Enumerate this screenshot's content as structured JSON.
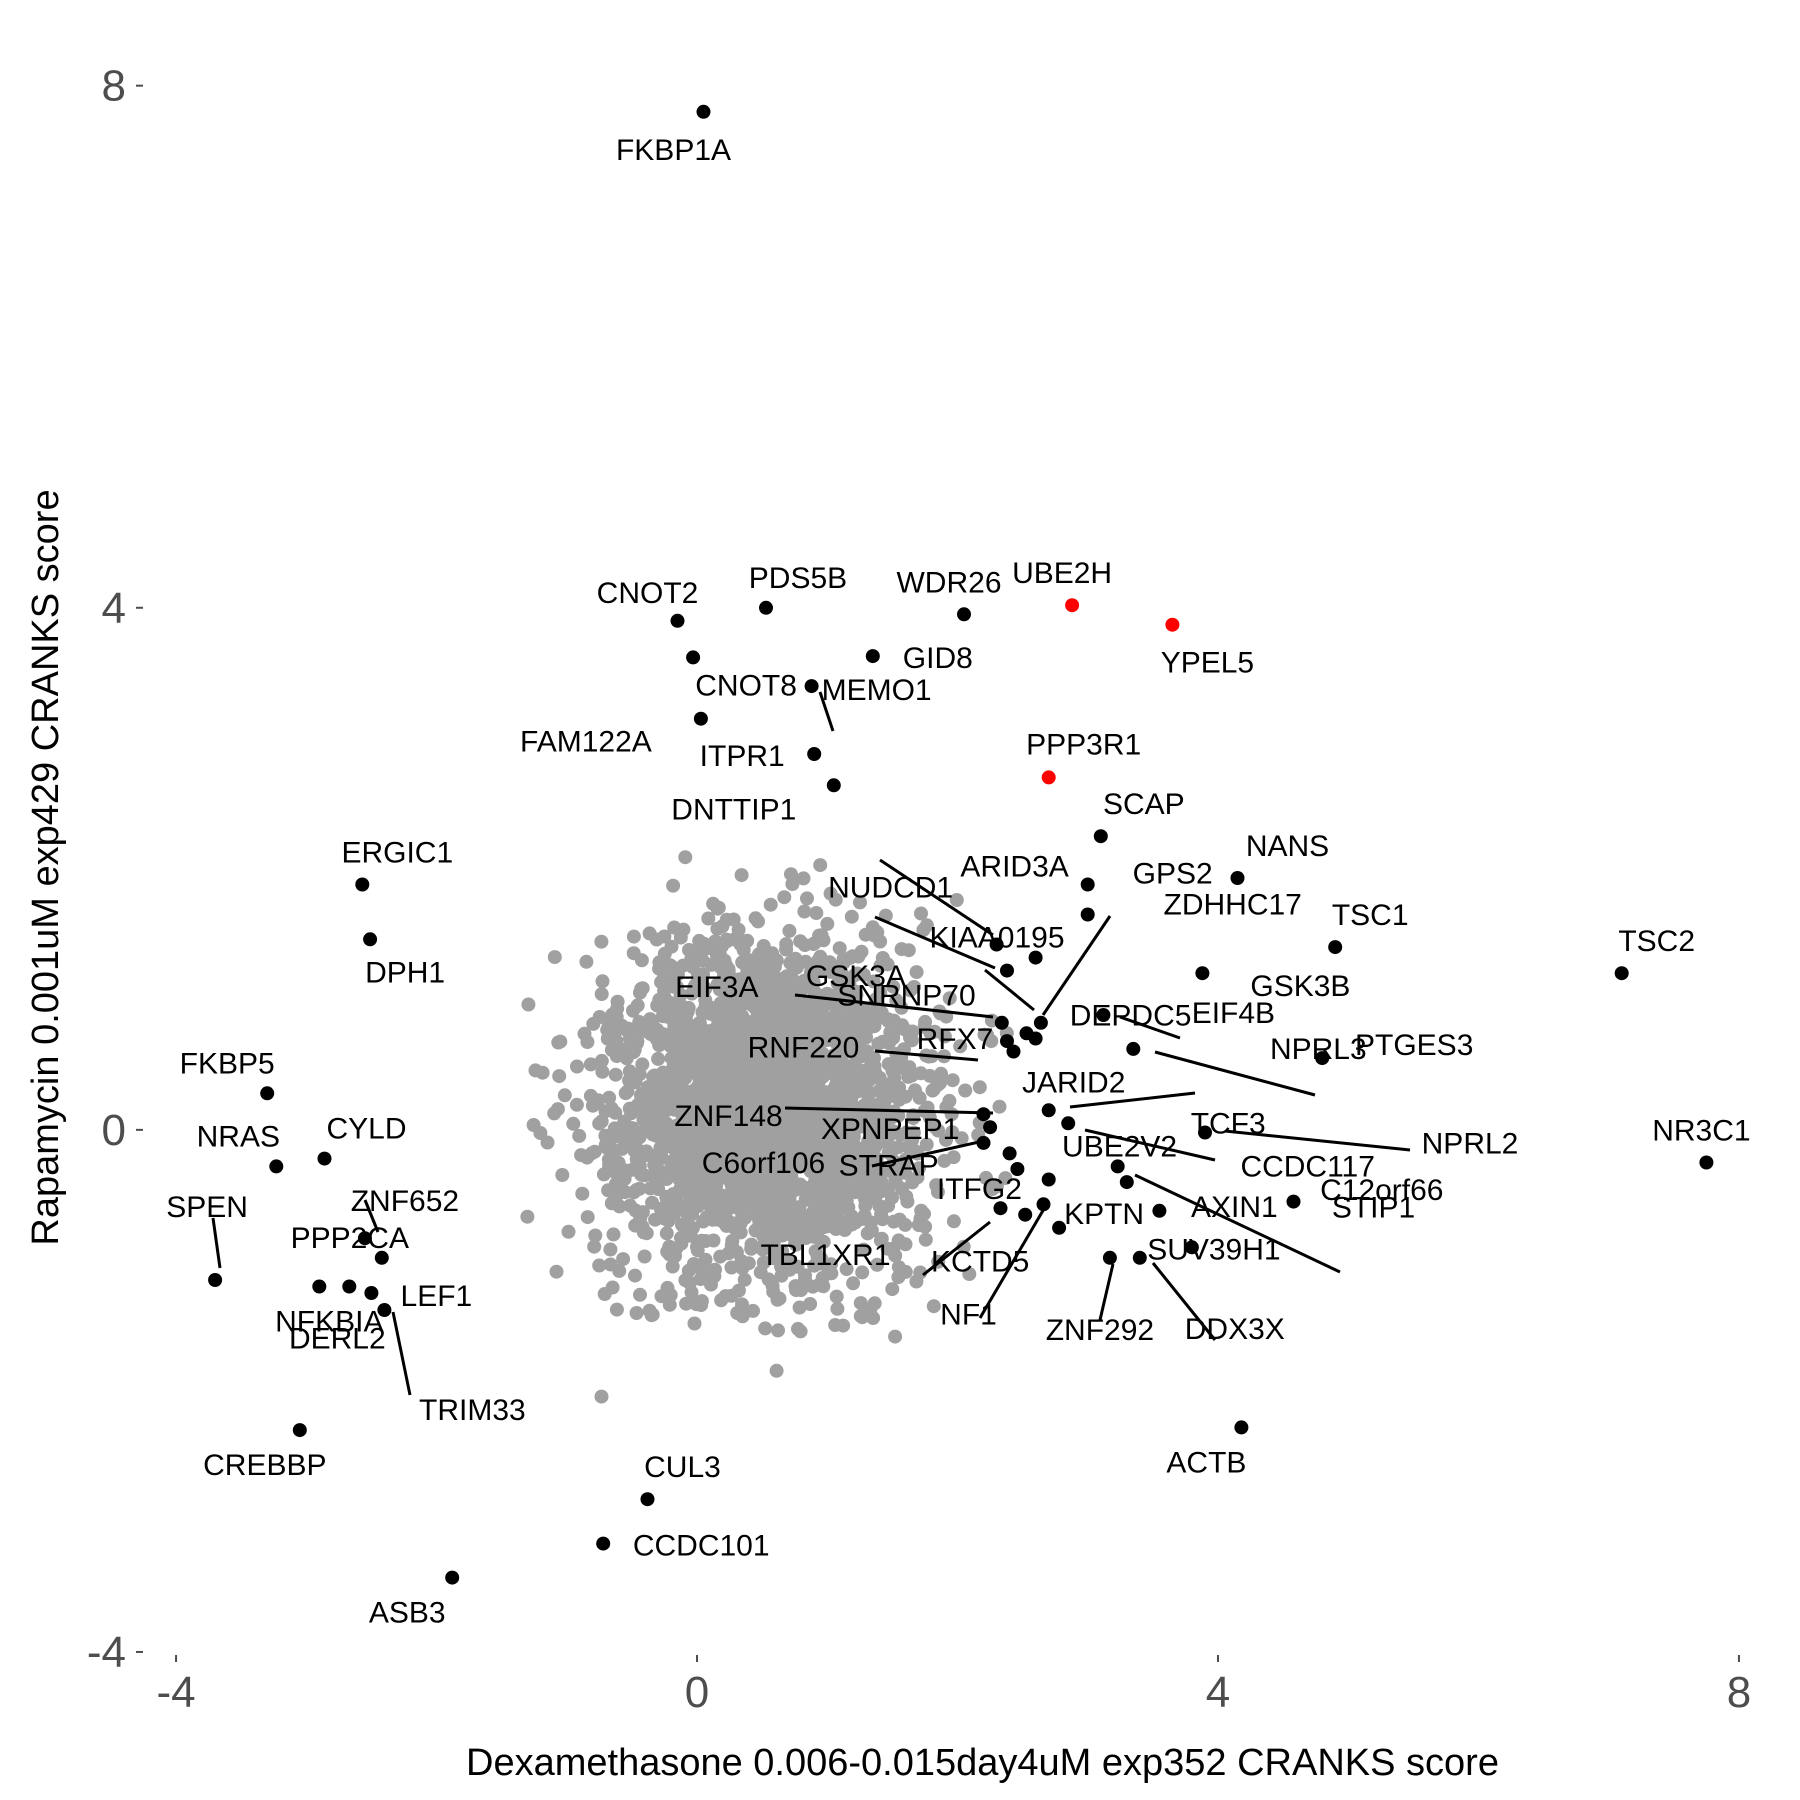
{
  "chart_data": {
    "type": "scatter",
    "xlabel": "Dexamethasone 0.006-0.015day4uM exp352 CRANKS score",
    "ylabel": "Rapamycin 0.001uM exp429 CRANKS score",
    "xlim": [
      -4.2,
      8.2
    ],
    "ylim": [
      -4.1,
      8.35
    ],
    "x_ticks": [
      -4,
      0,
      4,
      8
    ],
    "y_ticks": [
      -4,
      0,
      4,
      8
    ],
    "grid": false,
    "colors": {
      "background": "#d6d6d6",
      "highlight": "#000000",
      "special": "#ff0000",
      "tick_text": "#4d4d4d"
    },
    "background_cloud": {
      "description_of_mark": "dense cloud of non-highlighted genes, grey points",
      "core_center": [
        0.55,
        0.15
      ],
      "core_spread": [
        1.0,
        1.05
      ],
      "extent_x": [
        -2.5,
        2.9
      ],
      "extent_y": [
        -3.2,
        2.6
      ]
    },
    "highlighted_points": [
      {
        "gene": "FKBP1A",
        "x": 0.05,
        "y": 7.8,
        "color": "black"
      },
      {
        "gene": "CNOT2",
        "x": -0.15,
        "y": 3.9,
        "color": "black"
      },
      {
        "gene": "PDS5B",
        "x": 0.53,
        "y": 4.0,
        "color": "black"
      },
      {
        "gene": "WDR26",
        "x": 2.05,
        "y": 3.95,
        "color": "black"
      },
      {
        "gene": "UBE2H",
        "x": 2.88,
        "y": 4.02,
        "color": "red"
      },
      {
        "gene": "YPEL5",
        "x": 3.65,
        "y": 3.87,
        "color": "red"
      },
      {
        "gene": "GID8",
        "x": 1.35,
        "y": 3.63,
        "color": "black"
      },
      {
        "gene": "CNOT8",
        "x": -0.03,
        "y": 3.62,
        "color": "black"
      },
      {
        "gene": "MEMO1",
        "x": 0.88,
        "y": 3.4,
        "color": "black"
      },
      {
        "gene": "FAM122A",
        "x": 0.03,
        "y": 3.15,
        "color": "black"
      },
      {
        "gene": "ITPR1",
        "x": 0.9,
        "y": 2.88,
        "color": "black"
      },
      {
        "gene": "PPP3R1",
        "x": 2.7,
        "y": 2.7,
        "color": "red"
      },
      {
        "gene": "DNTTIP1",
        "x": 1.05,
        "y": 2.64,
        "color": "black"
      },
      {
        "gene": "SCAP",
        "x": 3.1,
        "y": 2.25,
        "color": "black"
      },
      {
        "gene": "NANS",
        "x": 4.15,
        "y": 1.93,
        "color": "black"
      },
      {
        "gene": "ARID3A",
        "x": 2.3,
        "y": 1.42,
        "color": "black"
      },
      {
        "gene": "GPS2",
        "x": 3.0,
        "y": 1.88,
        "color": "black"
      },
      {
        "gene": "ERGIC1",
        "x": -2.57,
        "y": 1.88,
        "color": "black"
      },
      {
        "gene": "TSC1",
        "x": 4.9,
        "y": 1.4,
        "color": "black"
      },
      {
        "gene": "TSC2",
        "x": 7.1,
        "y": 1.2,
        "color": "black"
      },
      {
        "gene": "NUDCD1",
        "x": 2.6,
        "y": 1.32,
        "color": "black"
      },
      {
        "gene": "ZDHHC17",
        "x": 3.0,
        "y": 1.65,
        "color": "black"
      },
      {
        "gene": "KIAA0195",
        "x": 2.38,
        "y": 1.22,
        "color": "black"
      },
      {
        "gene": "GSK3A",
        "x": 2.64,
        "y": 0.82,
        "color": "black"
      },
      {
        "gene": "DPH1",
        "x": -2.51,
        "y": 1.46,
        "color": "black"
      },
      {
        "gene": "GSK3B",
        "x": 3.88,
        "y": 1.2,
        "color": "black"
      },
      {
        "gene": "SNRNP70",
        "x": 2.53,
        "y": 0.74,
        "color": "black"
      },
      {
        "gene": "DEPDC5",
        "x": 2.6,
        "y": 0.7,
        "color": "black"
      },
      {
        "gene": "EIF3A",
        "x": 2.34,
        "y": 0.82,
        "color": "black"
      },
      {
        "gene": "RFX7",
        "x": 2.38,
        "y": 0.68,
        "color": "black"
      },
      {
        "gene": "EIF4B",
        "x": 3.12,
        "y": 0.88,
        "color": "black"
      },
      {
        "gene": "PTGES3",
        "x": 4.8,
        "y": 0.55,
        "color": "black"
      },
      {
        "gene": "RNF220",
        "x": 2.43,
        "y": 0.6,
        "color": "black"
      },
      {
        "gene": "NPRL3",
        "x": 3.35,
        "y": 0.62,
        "color": "black"
      },
      {
        "gene": "FKBP5",
        "x": -3.3,
        "y": 0.28,
        "color": "black"
      },
      {
        "gene": "JARID2",
        "x": 2.7,
        "y": 0.15,
        "color": "black"
      },
      {
        "gene": "TCF3",
        "x": 2.85,
        "y": 0.05,
        "color": "black"
      },
      {
        "gene": "CYLD",
        "x": -2.86,
        "y": -0.22,
        "color": "black"
      },
      {
        "gene": "NRAS",
        "x": -3.23,
        "y": -0.28,
        "color": "black"
      },
      {
        "gene": "ZNF148",
        "x": 2.2,
        "y": 0.12,
        "color": "black"
      },
      {
        "gene": "XPNPEP1",
        "x": 2.25,
        "y": 0.02,
        "color": "black"
      },
      {
        "gene": "NR3C1",
        "x": 7.75,
        "y": -0.25,
        "color": "black"
      },
      {
        "gene": "UBE2V2",
        "x": 2.4,
        "y": -0.18,
        "color": "black"
      },
      {
        "gene": "CCDC117",
        "x": 3.23,
        "y": -0.28,
        "color": "black"
      },
      {
        "gene": "NPRL2",
        "x": 3.9,
        "y": -0.02,
        "color": "black"
      },
      {
        "gene": "C6orf106",
        "x": 2.2,
        "y": -0.1,
        "color": "black"
      },
      {
        "gene": "ITFG2",
        "x": 2.46,
        "y": -0.3,
        "color": "black"
      },
      {
        "gene": "SPEN",
        "x": -3.7,
        "y": -1.15,
        "color": "black"
      },
      {
        "gene": "ZNF652",
        "x": -2.55,
        "y": -0.83,
        "color": "black"
      },
      {
        "gene": "STRAP",
        "x": 2.7,
        "y": -0.38,
        "color": "black"
      },
      {
        "gene": "AXIN1",
        "x": 3.55,
        "y": -0.62,
        "color": "black"
      },
      {
        "gene": "STIP1",
        "x": 4.58,
        "y": -0.55,
        "color": "black"
      },
      {
        "gene": "KPTN",
        "x": 2.78,
        "y": -0.75,
        "color": "black"
      },
      {
        "gene": "PPP2CA",
        "x": -2.42,
        "y": -0.98,
        "color": "black"
      },
      {
        "gene": "C12orf66",
        "x": 3.3,
        "y": -0.4,
        "color": "black"
      },
      {
        "gene": "LEF1",
        "x": -2.5,
        "y": -1.25,
        "color": "black"
      },
      {
        "gene": "NFKBIA",
        "x": -2.9,
        "y": -1.2,
        "color": "black"
      },
      {
        "gene": "TBL1XR1",
        "x": 2.33,
        "y": -0.6,
        "color": "black"
      },
      {
        "gene": "KCTD5",
        "x": 2.52,
        "y": -0.65,
        "color": "black"
      },
      {
        "gene": "SUV39H1",
        "x": 3.8,
        "y": -0.9,
        "color": "black"
      },
      {
        "gene": "DERL2",
        "x": -2.67,
        "y": -1.2,
        "color": "black"
      },
      {
        "gene": "NF1",
        "x": 2.66,
        "y": -0.57,
        "color": "black"
      },
      {
        "gene": "ZNF292",
        "x": 3.17,
        "y": -0.98,
        "color": "black"
      },
      {
        "gene": "DDX3X",
        "x": 3.4,
        "y": -0.98,
        "color": "black"
      },
      {
        "gene": "TRIM33",
        "x": -2.4,
        "y": -1.38,
        "color": "black"
      },
      {
        "gene": "CREBBP",
        "x": -3.05,
        "y": -2.3,
        "color": "black"
      },
      {
        "gene": "ACTB",
        "x": 4.18,
        "y": -2.28,
        "color": "black"
      },
      {
        "gene": "CUL3",
        "x": -0.38,
        "y": -2.83,
        "color": "black"
      },
      {
        "gene": "CCDC101",
        "x": -0.72,
        "y": -3.17,
        "color": "black"
      },
      {
        "gene": "ASB3",
        "x": -1.88,
        "y": -3.43,
        "color": "black"
      }
    ]
  }
}
